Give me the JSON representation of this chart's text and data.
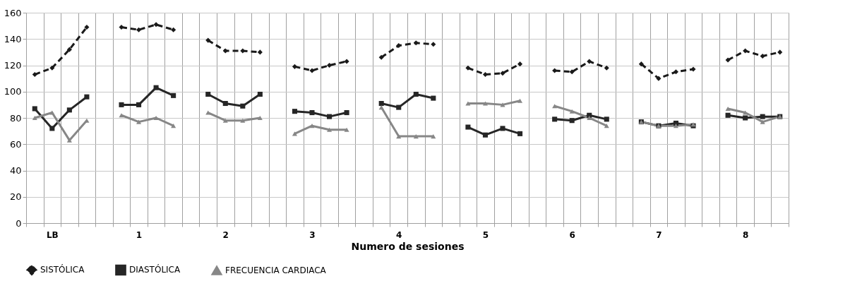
{
  "chart_data": {
    "type": "line",
    "xlabel": "Numero de sesiones",
    "categories": [
      null,
      "LB",
      null,
      null,
      null,
      null,
      "1",
      null,
      null,
      null,
      null,
      "2",
      null,
      null,
      null,
      null,
      "3",
      null,
      null,
      null,
      null,
      "4",
      null,
      null,
      null,
      null,
      "5",
      null,
      null,
      null,
      null,
      "6",
      null,
      null,
      null,
      null,
      "7",
      null,
      null,
      null,
      null,
      "8",
      null,
      null
    ],
    "ylim": [
      0,
      160
    ],
    "yticks": [
      0,
      20,
      40,
      60,
      80,
      100,
      120,
      140,
      160
    ],
    "grid": true,
    "legend": "bottom",
    "series": [
      {
        "name": "SISTÓLICA",
        "color": "#1a1a1a",
        "marker": "diamond",
        "line_style": "dashed",
        "values": [
          113,
          118,
          132,
          149,
          null,
          149,
          147,
          151,
          147,
          null,
          139,
          131,
          131,
          130,
          null,
          119,
          116,
          120,
          123,
          null,
          126,
          135,
          137,
          136,
          null,
          118,
          113,
          114,
          121,
          null,
          116,
          115,
          123,
          118,
          null,
          121,
          110,
          115,
          117,
          null,
          124,
          131,
          127,
          130
        ]
      },
      {
        "name": "DIASTÓLICA",
        "color": "#262626",
        "marker": "square",
        "line_style": "solid",
        "values": [
          87,
          72,
          86,
          96,
          null,
          90,
          90,
          103,
          97,
          null,
          98,
          91,
          89,
          98,
          null,
          85,
          84,
          81,
          84,
          null,
          91,
          88,
          98,
          95,
          null,
          73,
          67,
          72,
          68,
          null,
          79,
          78,
          82,
          79,
          null,
          77,
          74,
          76,
          74,
          null,
          82,
          80,
          81,
          81
        ]
      },
      {
        "name": "FRECUENCIA CARDIACA",
        "color": "#878787",
        "marker": "triangle",
        "line_style": "solid",
        "values": [
          80,
          84,
          63,
          78,
          null,
          82,
          77,
          80,
          74,
          null,
          84,
          78,
          78,
          80,
          null,
          68,
          74,
          71,
          71,
          null,
          88,
          66,
          66,
          66,
          null,
          91,
          91,
          90,
          93,
          null,
          89,
          85,
          80,
          74,
          null,
          77,
          74,
          74,
          75,
          null,
          87,
          84,
          77,
          81
        ]
      }
    ]
  }
}
